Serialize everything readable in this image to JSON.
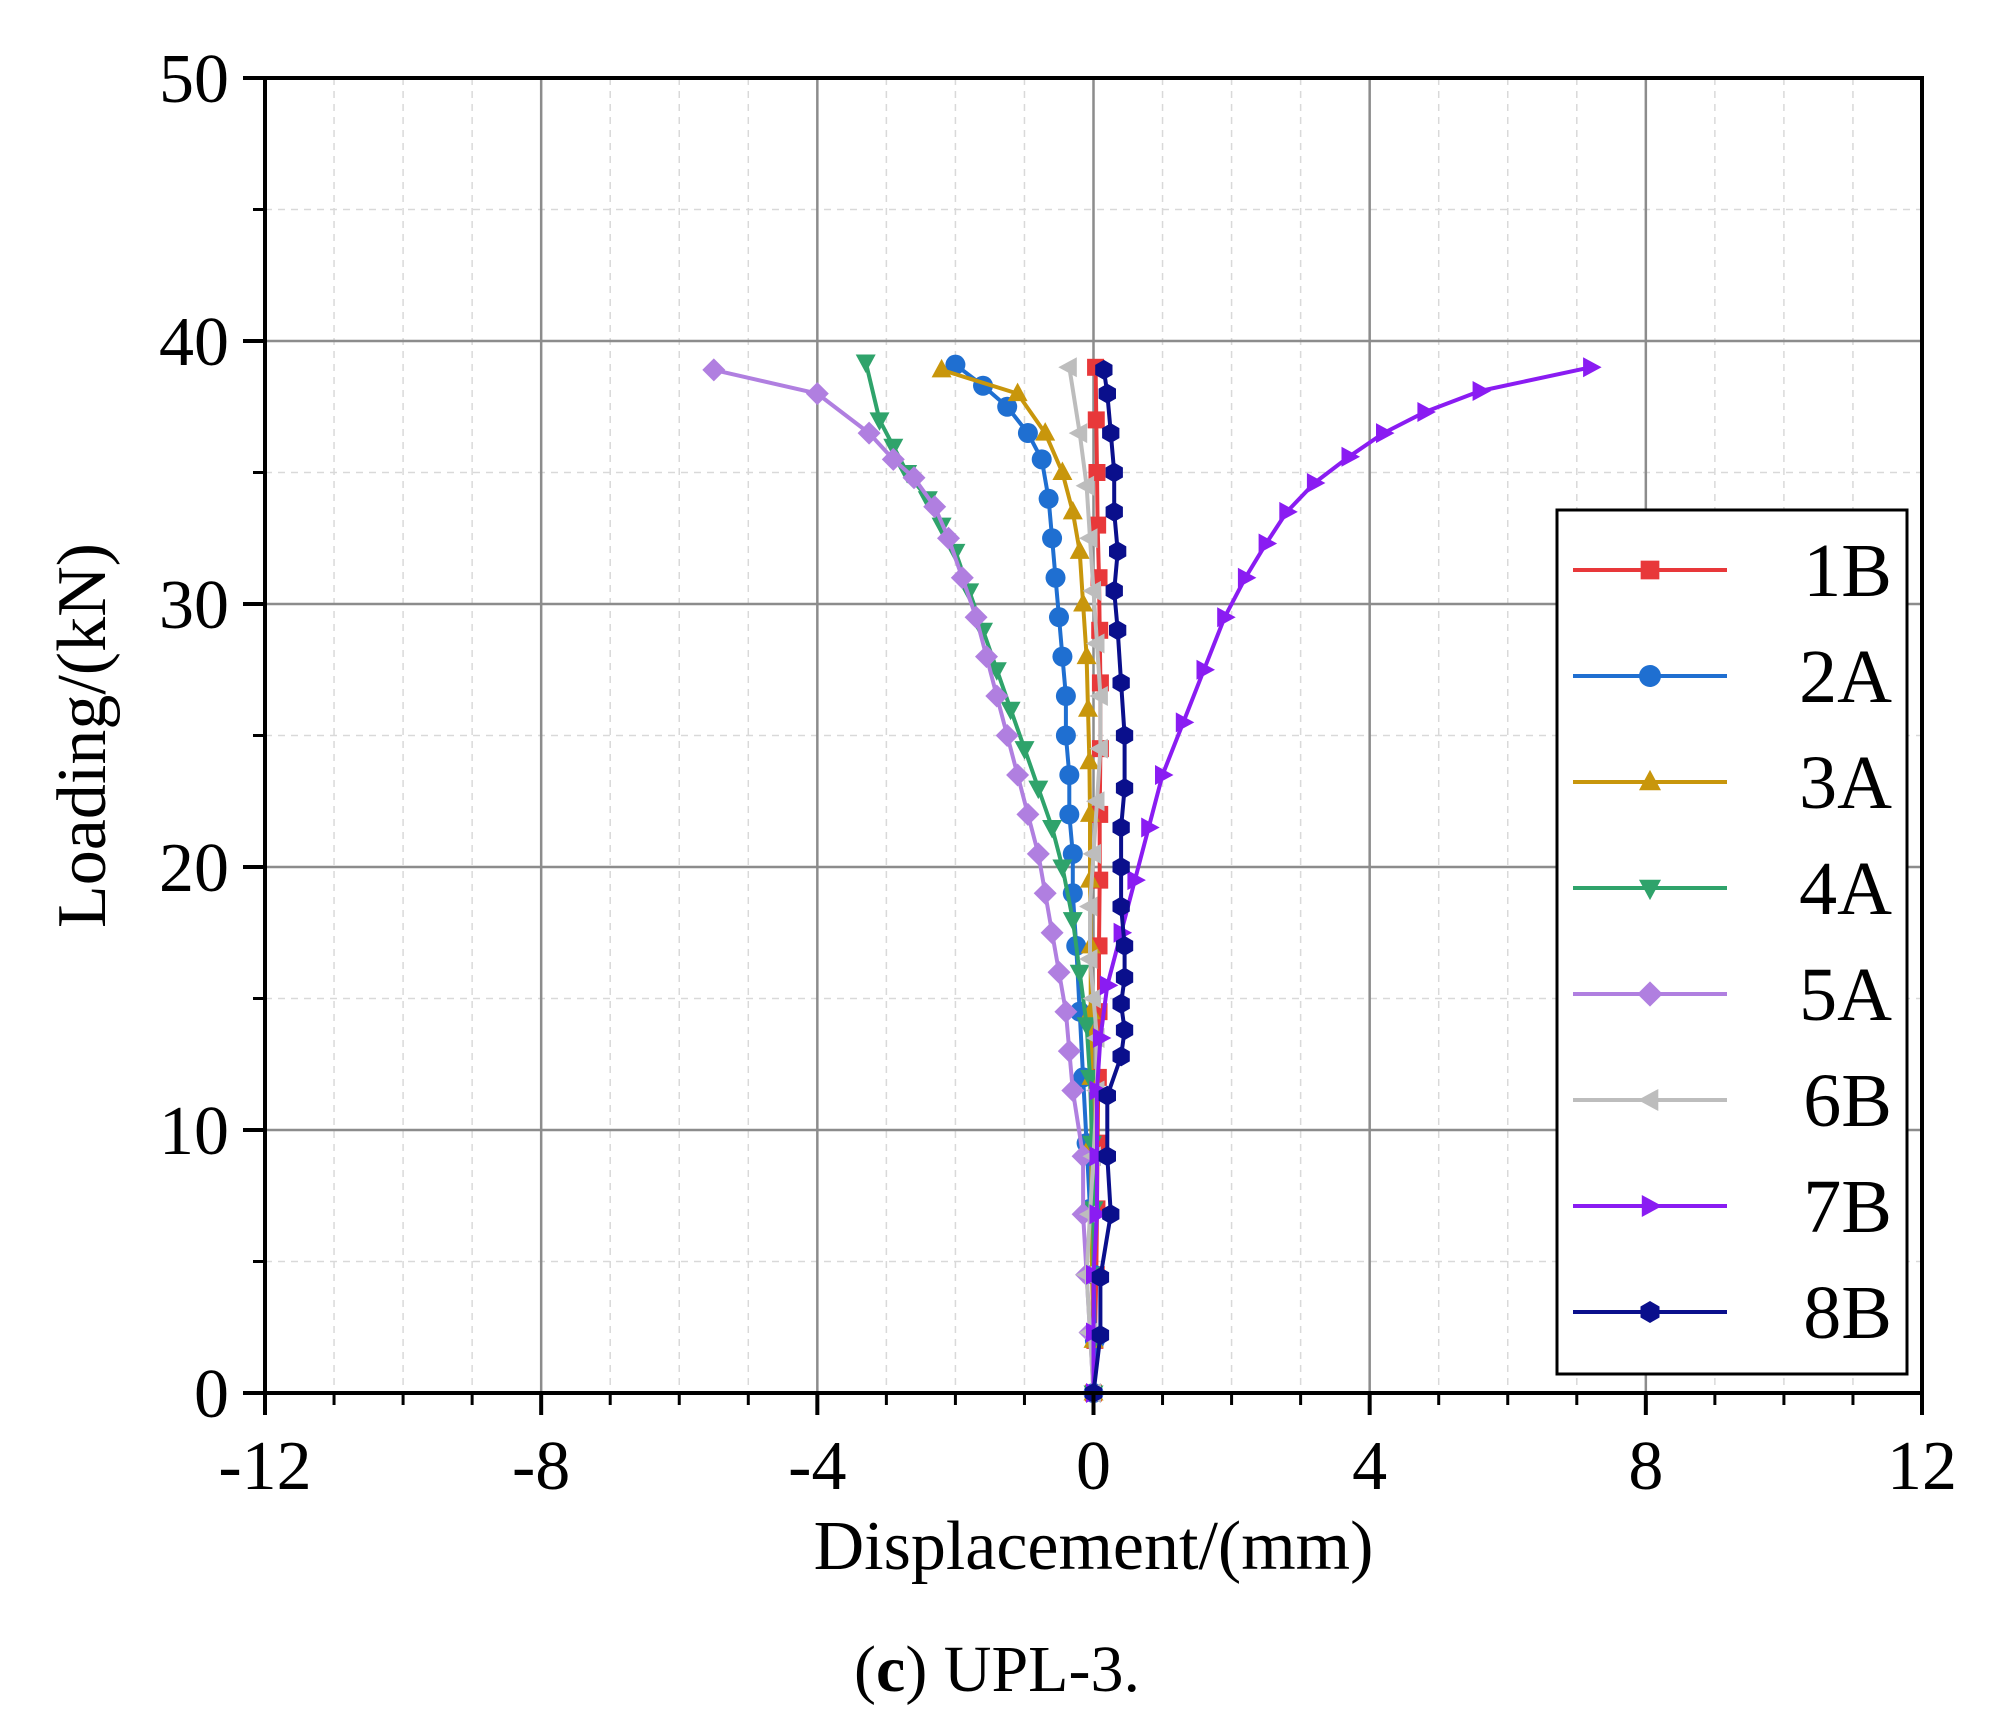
{
  "caption": {
    "label_prefix": "(",
    "label_letter": "c",
    "label_suffix": ")",
    "text": " UPL-3."
  },
  "chart_data": {
    "type": "line",
    "title": "",
    "xlabel": "Displacement/(mm)",
    "ylabel": "Loading/(kN)",
    "xlim": [
      -12,
      12
    ],
    "ylim": [
      0,
      50
    ],
    "xticks": [
      -12,
      -8,
      -4,
      0,
      4,
      8,
      12
    ],
    "yticks": [
      0,
      10,
      20,
      30,
      40,
      50
    ],
    "grid": true,
    "legend_position": "right",
    "series": [
      {
        "name": "1B",
        "color": "#e8383a",
        "marker": "square",
        "x": [
          0.0,
          0.02,
          0.04,
          0.05,
          0.06,
          0.07,
          0.08,
          0.08,
          0.09,
          0.09,
          0.1,
          0.1,
          0.09,
          0.08,
          0.06,
          0.05,
          0.04,
          0.03
        ],
        "y": [
          0,
          2,
          4.5,
          7,
          9.5,
          12,
          14.5,
          17,
          19.5,
          22,
          24.5,
          27,
          29,
          31,
          33,
          35,
          37,
          39
        ]
      },
      {
        "name": "2A",
        "color": "#1f6fd1",
        "marker": "circle",
        "x": [
          0.0,
          0.02,
          0.0,
          -0.05,
          -0.1,
          -0.15,
          -0.2,
          -0.25,
          -0.3,
          -0.3,
          -0.35,
          -0.35,
          -0.4,
          -0.4,
          -0.45,
          -0.5,
          -0.55,
          -0.6,
          -0.65,
          -0.75,
          -0.95,
          -1.25,
          -1.6,
          -2.0
        ],
        "y": [
          0,
          2,
          4.5,
          7,
          9.5,
          12,
          14.5,
          17,
          19,
          20.5,
          22,
          23.5,
          25,
          26.5,
          28,
          29.5,
          31,
          32.5,
          34,
          35.5,
          36.5,
          37.5,
          38.3,
          39.1
        ]
      },
      {
        "name": "3A",
        "color": "#c8960c",
        "marker": "triangle-up",
        "x": [
          0.0,
          0.0,
          -0.02,
          -0.03,
          -0.03,
          -0.03,
          -0.04,
          -0.04,
          -0.05,
          -0.05,
          -0.06,
          -0.08,
          -0.1,
          -0.15,
          -0.2,
          -0.3,
          -0.45,
          -0.7,
          -1.1,
          -2.2
        ],
        "y": [
          0,
          2,
          4.5,
          7,
          9.5,
          12,
          14.5,
          17,
          19.5,
          22,
          24,
          26,
          28,
          30,
          32,
          33.5,
          35,
          36.5,
          38,
          38.9
        ]
      },
      {
        "name": "4A",
        "color": "#2fa36b",
        "marker": "triangle-down",
        "x": [
          0.0,
          0.0,
          0.0,
          0.0,
          -0.02,
          -0.05,
          -0.1,
          -0.2,
          -0.3,
          -0.45,
          -0.6,
          -0.8,
          -1.0,
          -1.2,
          -1.4,
          -1.6,
          -1.8,
          -2.0,
          -2.2,
          -2.4,
          -2.7,
          -2.9,
          -3.1,
          -3.3
        ],
        "y": [
          0,
          2,
          4.5,
          7,
          9.5,
          12,
          14,
          16,
          18,
          20,
          21.5,
          23,
          24.5,
          26,
          27.5,
          29,
          30.5,
          32,
          33,
          34,
          35,
          36,
          37,
          39.2
        ]
      },
      {
        "name": "5A",
        "color": "#b07fe0",
        "marker": "diamond",
        "x": [
          0.0,
          -0.05,
          -0.1,
          -0.15,
          -0.15,
          -0.3,
          -0.35,
          -0.4,
          -0.5,
          -0.6,
          -0.7,
          -0.8,
          -0.95,
          -1.1,
          -1.25,
          -1.4,
          -1.55,
          -1.7,
          -1.9,
          -2.1,
          -2.3,
          -2.6,
          -2.9,
          -3.25,
          -4.0,
          -5.5
        ],
        "y": [
          0,
          2.3,
          4.5,
          6.8,
          9,
          11.5,
          13,
          14.5,
          16,
          17.5,
          19,
          20.5,
          22,
          23.5,
          25,
          26.5,
          28,
          29.5,
          31,
          32.5,
          33.7,
          34.8,
          35.5,
          36.5,
          38,
          38.9
        ]
      },
      {
        "name": "6B",
        "color": "#bdbdbd",
        "marker": "triangle-left",
        "x": [
          0.0,
          -0.05,
          -0.1,
          -0.05,
          0.0,
          0.05,
          0.05,
          0.0,
          -0.05,
          -0.05,
          0.0,
          0.05,
          0.1,
          0.1,
          0.05,
          0.0,
          -0.05,
          -0.1,
          -0.2,
          -0.35
        ],
        "y": [
          0,
          2.3,
          4.5,
          6.8,
          9,
          11.5,
          13.5,
          15,
          16.5,
          18.5,
          20.5,
          22.5,
          24.5,
          26.5,
          28.5,
          30.5,
          32.5,
          34.5,
          36.5,
          39
        ]
      },
      {
        "name": "7B",
        "color": "#8a1cf2",
        "marker": "triangle-right",
        "x": [
          0.0,
          0.0,
          0.0,
          0.05,
          0.05,
          0.05,
          0.1,
          0.2,
          0.4,
          0.6,
          0.8,
          1.0,
          1.3,
          1.6,
          1.9,
          2.2,
          2.5,
          2.8,
          3.2,
          3.7,
          4.2,
          4.8,
          5.6,
          7.2
        ],
        "y": [
          0,
          2.3,
          4.5,
          6.8,
          9,
          11.5,
          13.5,
          15.5,
          17.5,
          19.5,
          21.5,
          23.5,
          25.5,
          27.5,
          29.5,
          31,
          32.3,
          33.5,
          34.6,
          35.6,
          36.5,
          37.3,
          38.1,
          39
        ]
      },
      {
        "name": "8B",
        "color": "#0a0f8c",
        "marker": "hexagon",
        "x": [
          0.0,
          0.1,
          0.1,
          0.25,
          0.2,
          0.2,
          0.4,
          0.45,
          0.4,
          0.45,
          0.45,
          0.4,
          0.4,
          0.4,
          0.45,
          0.45,
          0.4,
          0.35,
          0.3,
          0.35,
          0.3,
          0.3,
          0.25,
          0.2,
          0.15
        ],
        "y": [
          0,
          2.2,
          4.4,
          6.8,
          9,
          11.3,
          12.8,
          13.8,
          14.8,
          15.8,
          17,
          18.5,
          20,
          21.5,
          23,
          25,
          27,
          29,
          30.5,
          32,
          33.5,
          35,
          36.5,
          38,
          38.9
        ]
      }
    ]
  }
}
